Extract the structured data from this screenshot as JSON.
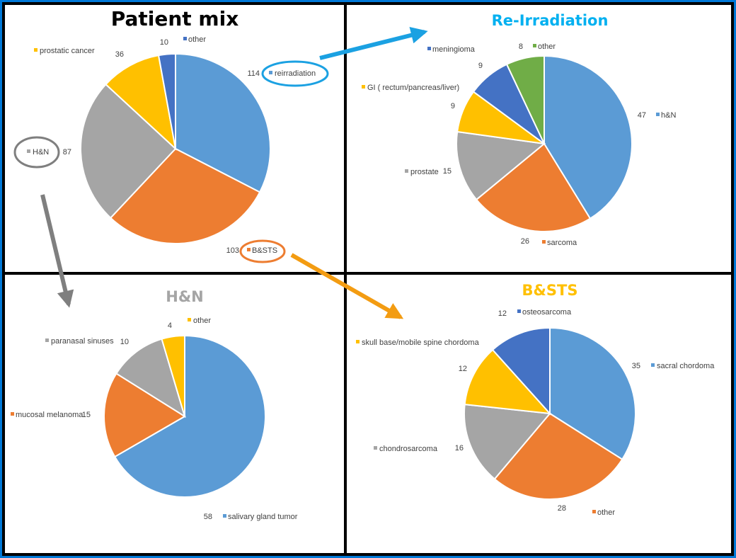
{
  "colors": {
    "blue": "#5B9BD5",
    "orange": "#ED7D31",
    "gray": "#A5A5A5",
    "gold": "#FFC000",
    "darkblue": "#4472C4",
    "green": "#70AD47",
    "border": "#000000",
    "outer_frame": "#0078D7"
  },
  "chart_data": [
    {
      "type": "pie",
      "title": "Patient mix",
      "title_color": "#000000",
      "slices": [
        {
          "label": "reirradiation",
          "value": 114,
          "color": "#5B9BD5"
        },
        {
          "label": "B&STS",
          "value": 103,
          "color": "#ED7D31"
        },
        {
          "label": "H&N",
          "value": 87,
          "color": "#A5A5A5"
        },
        {
          "label": "prostatic cancer",
          "value": 36,
          "color": "#FFC000"
        },
        {
          "label": "other",
          "value": 10,
          "color": "#4472C4"
        }
      ]
    },
    {
      "type": "pie",
      "title": "Re-Irradiation",
      "title_color": "#00B0F0",
      "slices": [
        {
          "label": "h&N",
          "value": 47,
          "color": "#5B9BD5"
        },
        {
          "label": "sarcoma",
          "value": 26,
          "color": "#ED7D31"
        },
        {
          "label": "prostate",
          "value": 15,
          "color": "#A5A5A5"
        },
        {
          "label": "GI ( rectum/pancreas/liver)",
          "value": 9,
          "color": "#FFC000"
        },
        {
          "label": "meningioma",
          "value": 9,
          "color": "#4472C4"
        },
        {
          "label": "other",
          "value": 8,
          "color": "#70AD47"
        }
      ]
    },
    {
      "type": "pie",
      "title": "H&N",
      "title_color": "#A5A5A5",
      "slices": [
        {
          "label": "salivary gland tumor",
          "value": 58,
          "color": "#5B9BD5"
        },
        {
          "label": "mucosal melanoma",
          "value": 15,
          "color": "#ED7D31"
        },
        {
          "label": "paranasal sinuses",
          "value": 10,
          "color": "#A5A5A5"
        },
        {
          "label": "other",
          "value": 4,
          "color": "#FFC000"
        }
      ]
    },
    {
      "type": "pie",
      "title": "B&STS",
      "title_color": "#FFC000",
      "slices": [
        {
          "label": "sacral chordoma",
          "value": 35,
          "color": "#5B9BD5"
        },
        {
          "label": "other",
          "value": 28,
          "color": "#ED7D31"
        },
        {
          "label": "chondrosarcoma",
          "value": 16,
          "color": "#A5A5A5"
        },
        {
          "label": "skull base/mobile spine  chordoma",
          "value": 12,
          "color": "#FFC000"
        },
        {
          "label": "osteosarcoma",
          "value": 12,
          "color": "#4472C4"
        }
      ]
    }
  ]
}
